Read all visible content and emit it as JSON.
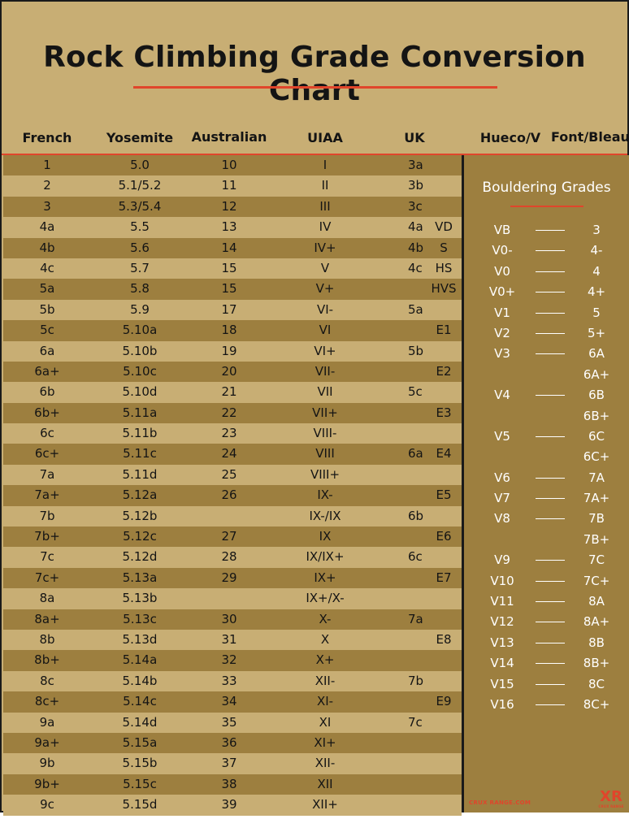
{
  "title": "Rock Climbing Grade Conversion Chart",
  "headers": {
    "french": "French",
    "yosemite": "Yosemite",
    "australian": "Australian",
    "uiaa": "UIAA",
    "uk": "UK",
    "hueco": "Hueco/V",
    "font": "Font/Bleau"
  },
  "rows": [
    {
      "french": "1",
      "yosemite": "5.0",
      "australian": "10",
      "uiaa": "I",
      "uk_tech": "3a",
      "uk_adj": ""
    },
    {
      "french": "2",
      "yosemite": "5.1/5.2",
      "australian": "11",
      "uiaa": "II",
      "uk_tech": "3b",
      "uk_adj": ""
    },
    {
      "french": "3",
      "yosemite": "5.3/5.4",
      "australian": "12",
      "uiaa": "III",
      "uk_tech": "3c",
      "uk_adj": ""
    },
    {
      "french": "4a",
      "yosemite": "5.5",
      "australian": "13",
      "uiaa": "IV",
      "uk_tech": "4a",
      "uk_adj": "VD"
    },
    {
      "french": "4b",
      "yosemite": "5.6",
      "australian": "14",
      "uiaa": "IV+",
      "uk_tech": "4b",
      "uk_adj": "S"
    },
    {
      "french": "4c",
      "yosemite": "5.7",
      "australian": "15",
      "uiaa": "V",
      "uk_tech": "4c",
      "uk_adj": "HS"
    },
    {
      "french": "5a",
      "yosemite": "5.8",
      "australian": "15",
      "uiaa": "V+",
      "uk_tech": "",
      "uk_adj": "HVS"
    },
    {
      "french": "5b",
      "yosemite": "5.9",
      "australian": "17",
      "uiaa": "VI-",
      "uk_tech": "5a",
      "uk_adj": ""
    },
    {
      "french": "5c",
      "yosemite": "5.10a",
      "australian": "18",
      "uiaa": "VI",
      "uk_tech": "",
      "uk_adj": "E1"
    },
    {
      "french": "6a",
      "yosemite": "5.10b",
      "australian": "19",
      "uiaa": "VI+",
      "uk_tech": "5b",
      "uk_adj": ""
    },
    {
      "french": "6a+",
      "yosemite": "5.10c",
      "australian": "20",
      "uiaa": "VII-",
      "uk_tech": "",
      "uk_adj": "E2"
    },
    {
      "french": "6b",
      "yosemite": "5.10d",
      "australian": "21",
      "uiaa": "VII",
      "uk_tech": "5c",
      "uk_adj": ""
    },
    {
      "french": "6b+",
      "yosemite": "5.11a",
      "australian": "22",
      "uiaa": "VII+",
      "uk_tech": "",
      "uk_adj": "E3"
    },
    {
      "french": "6c",
      "yosemite": "5.11b",
      "australian": "23",
      "uiaa": "VIII-",
      "uk_tech": "",
      "uk_adj": ""
    },
    {
      "french": "6c+",
      "yosemite": "5.11c",
      "australian": "24",
      "uiaa": "VIII",
      "uk_tech": "6a",
      "uk_adj": "E4"
    },
    {
      "french": "7a",
      "yosemite": "5.11d",
      "australian": "25",
      "uiaa": "VIII+",
      "uk_tech": "",
      "uk_adj": ""
    },
    {
      "french": "7a+",
      "yosemite": "5.12a",
      "australian": "26",
      "uiaa": "IX-",
      "uk_tech": "",
      "uk_adj": "E5"
    },
    {
      "french": "7b",
      "yosemite": "5.12b",
      "australian": "",
      "uiaa": "IX-/IX",
      "uk_tech": "6b",
      "uk_adj": ""
    },
    {
      "french": "7b+",
      "yosemite": "5.12c",
      "australian": "27",
      "uiaa": "IX",
      "uk_tech": "",
      "uk_adj": "E6"
    },
    {
      "french": "7c",
      "yosemite": "5.12d",
      "australian": "28",
      "uiaa": "IX/IX+",
      "uk_tech": "6c",
      "uk_adj": ""
    },
    {
      "french": "7c+",
      "yosemite": "5.13a",
      "australian": "29",
      "uiaa": "IX+",
      "uk_tech": "",
      "uk_adj": "E7"
    },
    {
      "french": "8a",
      "yosemite": "5.13b",
      "australian": "",
      "uiaa": "IX+/X-",
      "uk_tech": "",
      "uk_adj": ""
    },
    {
      "french": "8a+",
      "yosemite": "5.13c",
      "australian": "30",
      "uiaa": "X-",
      "uk_tech": "7a",
      "uk_adj": ""
    },
    {
      "french": "8b",
      "yosemite": "5.13d",
      "australian": "31",
      "uiaa": "X",
      "uk_tech": "",
      "uk_adj": "E8"
    },
    {
      "french": "8b+",
      "yosemite": "5.14a",
      "australian": "32",
      "uiaa": "X+",
      "uk_tech": "",
      "uk_adj": ""
    },
    {
      "french": "8c",
      "yosemite": "5.14b",
      "australian": "33",
      "uiaa": "XII-",
      "uk_tech": "7b",
      "uk_adj": ""
    },
    {
      "french": "8c+",
      "yosemite": "5.14c",
      "australian": "34",
      "uiaa": "XI-",
      "uk_tech": "",
      "uk_adj": "E9"
    },
    {
      "french": "9a",
      "yosemite": "5.14d",
      "australian": "35",
      "uiaa": "XI",
      "uk_tech": "7c",
      "uk_adj": ""
    },
    {
      "french": "9a+",
      "yosemite": "5.15a",
      "australian": "36",
      "uiaa": "XI+",
      "uk_tech": "",
      "uk_adj": ""
    },
    {
      "french": "9b",
      "yosemite": "5.15b",
      "australian": "37",
      "uiaa": "XII-",
      "uk_tech": "",
      "uk_adj": ""
    },
    {
      "french": "9b+",
      "yosemite": "5.15c",
      "australian": "38",
      "uiaa": "XII",
      "uk_tech": "",
      "uk_adj": ""
    },
    {
      "french": "9c",
      "yosemite": "5.15d",
      "australian": "39",
      "uiaa": "XII+",
      "uk_tech": "",
      "uk_adj": ""
    }
  ],
  "bouldering": {
    "title": "Bouldering Grades",
    "rows": [
      {
        "v": "VB",
        "font": "3"
      },
      {
        "v": "V0-",
        "font": "4-"
      },
      {
        "v": "V0",
        "font": "4"
      },
      {
        "v": "V0+",
        "font": "4+"
      },
      {
        "v": "V1",
        "font": "5"
      },
      {
        "v": "V2",
        "font": "5+"
      },
      {
        "v": "V3",
        "font": "6A"
      },
      {
        "v": "",
        "font": "6A+"
      },
      {
        "v": "V4",
        "font": "6B"
      },
      {
        "v": "",
        "font": "6B+"
      },
      {
        "v": "V5",
        "font": "6C"
      },
      {
        "v": "",
        "font": "6C+"
      },
      {
        "v": "V6",
        "font": "7A"
      },
      {
        "v": "V7",
        "font": "7A+"
      },
      {
        "v": "V8",
        "font": "7B"
      },
      {
        "v": "",
        "font": "7B+"
      },
      {
        "v": "V9",
        "font": "7C"
      },
      {
        "v": "V10",
        "font": "7C+"
      },
      {
        "v": "V11",
        "font": "8A"
      },
      {
        "v": "V12",
        "font": "8A+"
      },
      {
        "v": "V13",
        "font": "8B"
      },
      {
        "v": "V14",
        "font": "8B+"
      },
      {
        "v": "V15",
        "font": "8C"
      },
      {
        "v": "V16",
        "font": "8C+"
      }
    ]
  },
  "footer": {
    "site": "CRUX RANGE.COM",
    "logo": "XR",
    "logo_sub": "CRUX RANGE"
  },
  "colors": {
    "background": "#c8ae74",
    "band_dark": "#9d7f3f",
    "accent": "#e0452b",
    "text": "#141414"
  }
}
